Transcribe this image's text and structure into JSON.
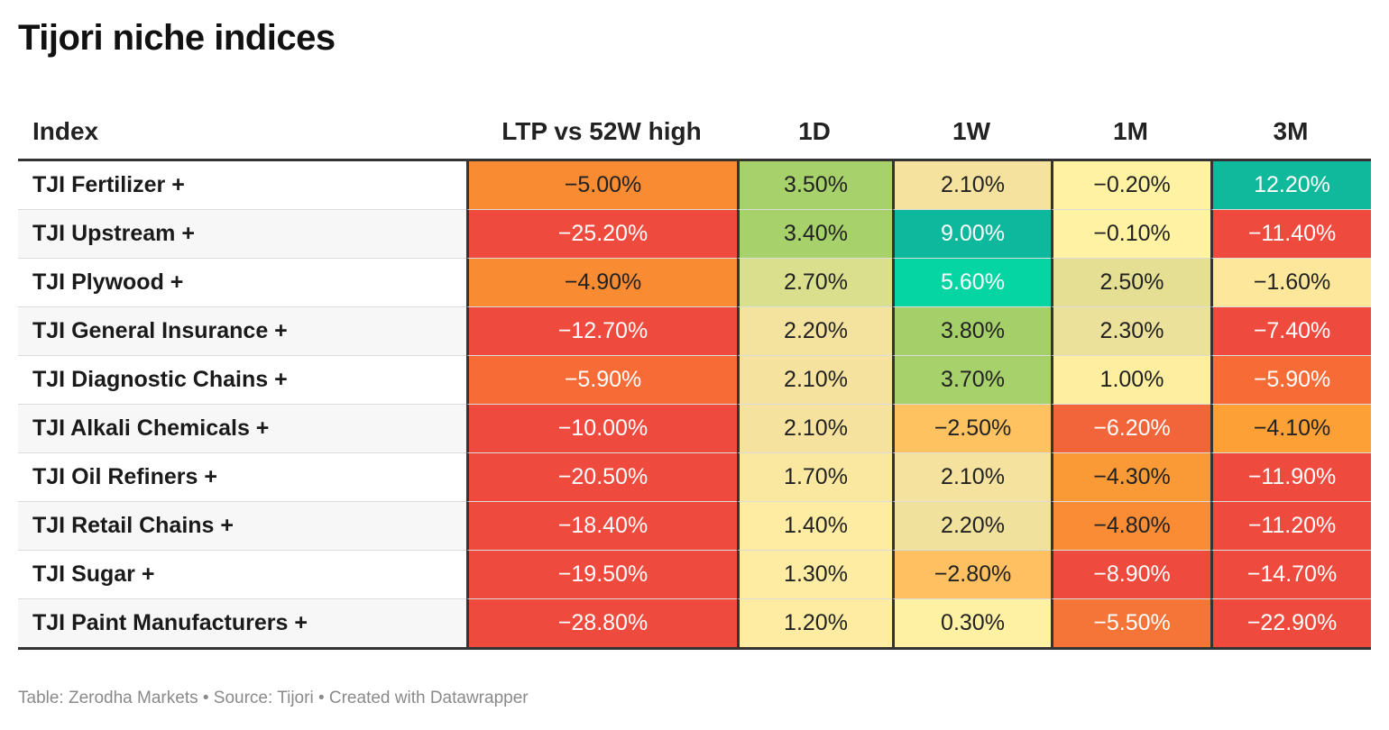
{
  "title": "Tijori niche indices",
  "footer": "Table: Zerodha Markets • Source: Tijori • Created with Datawrapper",
  "chart_data": {
    "type": "table",
    "title": "Tijori niche indices",
    "columns": [
      "Index",
      "LTP vs 52W high",
      "1D",
      "1W",
      "1M",
      "3M"
    ],
    "rows": [
      {
        "index": "TJI Fertilizer +",
        "values": [
          -5.0,
          3.5,
          2.1,
          -0.2,
          12.2
        ],
        "labels": [
          "−5.00%",
          "3.50%",
          "2.10%",
          "−0.20%",
          "12.20%"
        ],
        "colors": [
          "#f98b33",
          "#a7d16b",
          "#f6e29f",
          "#fff3a3",
          "#10b89c"
        ]
      },
      {
        "index": "TJI Upstream +",
        "values": [
          -25.2,
          3.4,
          9.0,
          -0.1,
          -11.4
        ],
        "labels": [
          "−25.20%",
          "3.40%",
          "9.00%",
          "−0.10%",
          "−11.40%"
        ],
        "colors": [
          "#ee4a3d",
          "#a7d16b",
          "#0db89c",
          "#fff3a3",
          "#ee4a3d"
        ]
      },
      {
        "index": "TJI Plywood +",
        "values": [
          -4.9,
          2.7,
          5.6,
          2.5,
          -1.6
        ],
        "labels": [
          "−4.90%",
          "2.70%",
          "5.60%",
          "2.50%",
          "−1.60%"
        ],
        "colors": [
          "#f98b33",
          "#d9df8d",
          "#05d4a3",
          "#e4df92",
          "#fde79a"
        ]
      },
      {
        "index": "TJI General Insurance +",
        "values": [
          -12.7,
          2.2,
          3.8,
          2.3,
          -7.4
        ],
        "labels": [
          "−12.70%",
          "2.20%",
          "3.80%",
          "2.30%",
          "−7.40%"
        ],
        "colors": [
          "#ee4a3d",
          "#f4e39e",
          "#a5cf68",
          "#ece19a",
          "#ee4a3d"
        ]
      },
      {
        "index": "TJI Diagnostic Chains +",
        "values": [
          -5.9,
          2.1,
          3.7,
          1.0,
          -5.9
        ],
        "labels": [
          "−5.90%",
          "2.10%",
          "3.70%",
          "1.00%",
          "−5.90%"
        ],
        "colors": [
          "#f76b37",
          "#f6e29f",
          "#a7d16b",
          "#fdef9f",
          "#f76b37"
        ]
      },
      {
        "index": "TJI Alkali Chemicals +",
        "values": [
          -10.0,
          2.1,
          -2.5,
          -6.2,
          -4.1
        ],
        "labels": [
          "−10.00%",
          "2.10%",
          "−2.50%",
          "−6.20%",
          "−4.10%"
        ],
        "colors": [
          "#ee4a3d",
          "#f6e29f",
          "#fec260",
          "#f26439",
          "#fda035"
        ]
      },
      {
        "index": "TJI Oil Refiners +",
        "values": [
          -20.5,
          1.7,
          2.1,
          -4.3,
          -11.9
        ],
        "labels": [
          "−20.50%",
          "1.70%",
          "2.10%",
          "−4.30%",
          "−11.90%"
        ],
        "colors": [
          "#ee4a3d",
          "#fbe8a0",
          "#f6e29f",
          "#fa9a36",
          "#ee4a3d"
        ]
      },
      {
        "index": "TJI Retail Chains +",
        "values": [
          -18.4,
          1.4,
          2.2,
          -4.8,
          -11.2
        ],
        "labels": [
          "−18.40%",
          "1.40%",
          "2.20%",
          "−4.80%",
          "−11.20%"
        ],
        "colors": [
          "#ee4a3d",
          "#fdeca1",
          "#f0e19c",
          "#f98c35",
          "#ee4a3d"
        ]
      },
      {
        "index": "TJI Sugar +",
        "values": [
          -19.5,
          1.3,
          -2.8,
          -8.9,
          -14.7
        ],
        "labels": [
          "−19.50%",
          "1.30%",
          "−2.80%",
          "−8.90%",
          "−14.70%"
        ],
        "colors": [
          "#ee4a3d",
          "#fdeca1",
          "#fec060",
          "#ee4a3d",
          "#ee4a3d"
        ]
      },
      {
        "index": "TJI Paint Manufacturers +",
        "values": [
          -28.8,
          1.2,
          0.3,
          -5.5,
          -22.9
        ],
        "labels": [
          "−28.80%",
          "1.20%",
          "0.30%",
          "−5.50%",
          "−22.90%"
        ],
        "colors": [
          "#ee4a3d",
          "#fdeca1",
          "#fff1a3",
          "#f57538",
          "#ee4a3d"
        ]
      }
    ]
  }
}
